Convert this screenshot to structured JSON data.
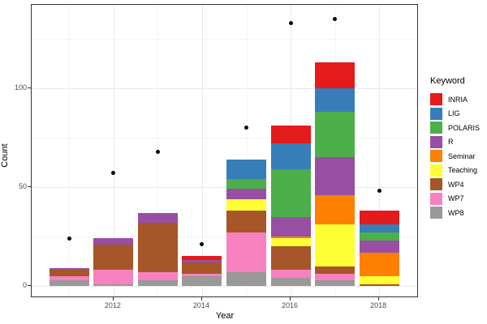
{
  "axis": {
    "x_title": "Year",
    "y_title": "Count",
    "y_tick_labels": [
      "0",
      "50",
      "100"
    ],
    "x_tick_labels": [
      "2012",
      "2014",
      "2016",
      "2018"
    ]
  },
  "legend": {
    "title": "Keyword"
  },
  "colors": {
    "dot": "#000000",
    "panel_border": "#333333",
    "grid_major": "#e9e9e9",
    "grid_minor": "#f4f4f4",
    "tick_text": "#4d4d4d"
  },
  "chart_data": {
    "type": "bar",
    "stacked": true,
    "title": "",
    "xlabel": "Year",
    "ylabel": "Count",
    "legend_title": "Keyword",
    "legend_position": "right",
    "grid": true,
    "x": [
      2011,
      2012,
      2013,
      2014,
      2015,
      2016,
      2017,
      2018
    ],
    "x_breaks": [
      2012,
      2014,
      2016,
      2018
    ],
    "y_major_ticks": [
      0,
      50,
      100
    ],
    "y_minor_ticks": [
      25,
      75,
      125
    ],
    "ylim": [
      -6,
      142
    ],
    "stack_note": "series listed in legend order; stacking order bottom-to-top is reverse of this list",
    "series": [
      {
        "name": "INRIA",
        "color": "#e41a1c",
        "values": [
          0,
          0,
          0,
          2,
          0,
          9,
          13,
          7
        ]
      },
      {
        "name": "LIG",
        "color": "#377eb8",
        "values": [
          0,
          0,
          0,
          0,
          10,
          13,
          12,
          4
        ]
      },
      {
        "name": "POLARIS",
        "color": "#4daf4a",
        "values": [
          0,
          0,
          0,
          0,
          5,
          24,
          23,
          4
        ]
      },
      {
        "name": "R",
        "color": "#984ea3",
        "values": [
          1,
          3,
          5,
          1,
          5,
          10,
          19,
          6
        ]
      },
      {
        "name": "Seminar",
        "color": "#ff7f00",
        "values": [
          0,
          0,
          0,
          0,
          0,
          1,
          15,
          12
        ]
      },
      {
        "name": "Teaching",
        "color": "#ffff33",
        "values": [
          0,
          0,
          0,
          0,
          6,
          4,
          21,
          4
        ]
      },
      {
        "name": "WP4",
        "color": "#a65628",
        "values": [
          3,
          13,
          25,
          6,
          11,
          12,
          4,
          1
        ]
      },
      {
        "name": "WP7",
        "color": "#f781bf",
        "values": [
          2,
          7,
          4,
          1,
          20,
          4,
          3,
          0
        ]
      },
      {
        "name": "WP8",
        "color": "#999999",
        "values": [
          3,
          1,
          3,
          5,
          7,
          4,
          3,
          0
        ]
      }
    ],
    "bar_totals": [
      9,
      24,
      37,
      15,
      64,
      81,
      113,
      38
    ],
    "points": {
      "name": "total-dots",
      "color": "#000000",
      "values": [
        24,
        57,
        68,
        21,
        80,
        133,
        135,
        48
      ]
    }
  }
}
